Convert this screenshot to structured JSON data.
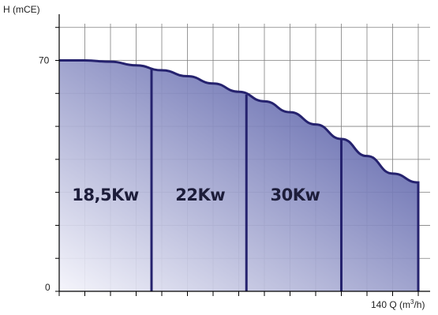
{
  "chart_data": {
    "type": "area",
    "ylabel": "H (mCE)",
    "xlabel": "Q (m³/h)",
    "x_max_tick_label": "140",
    "y_tick_labels": [
      "0",
      "70"
    ],
    "xlim": [
      0,
      140
    ],
    "ylim": [
      0,
      84
    ],
    "grid": true,
    "curve": {
      "x": [
        0,
        10,
        20,
        30,
        40,
        50,
        60,
        70,
        80,
        90,
        100,
        110,
        120,
        130,
        140
      ],
      "y": [
        70,
        70,
        69.6,
        68.5,
        67,
        65.2,
        63,
        60.5,
        57.6,
        54.3,
        50.6,
        46.2,
        41,
        35.7,
        33
      ]
    },
    "dividers_x": [
      36,
      73,
      110
    ],
    "regions": [
      {
        "label": "18,5Kw",
        "x_center": 18
      },
      {
        "label": "22Kw",
        "x_center": 55
      },
      {
        "label": "30Kw",
        "x_center": 92
      }
    ],
    "colors": {
      "fill_light": "#f4f4fb",
      "fill_dark": "#3c4499",
      "curve": "#25226e",
      "grid": "#7f7f7f"
    }
  }
}
